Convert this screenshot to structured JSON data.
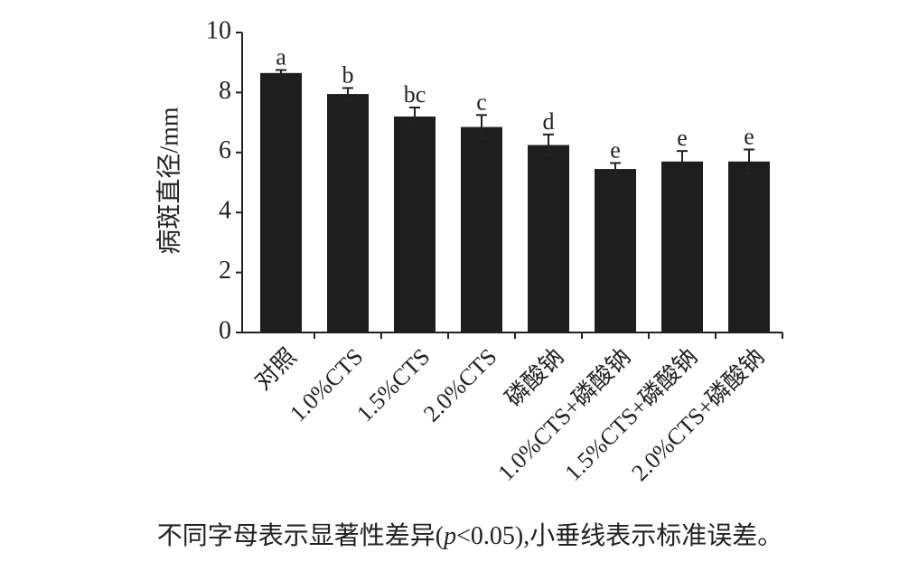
{
  "chart_data": {
    "type": "bar",
    "y_label": "病斑直径/mm",
    "categories": [
      "对照",
      "1.0%CTS",
      "1.5%CTS",
      "2.0%CTS",
      "磷酸钠",
      "1.0%CTS+磷酸钠",
      "1.5%CTS+磷酸钠",
      "2.0%CTS+磷酸钠"
    ],
    "values": [
      8.65,
      7.95,
      7.2,
      6.85,
      6.25,
      5.45,
      5.7,
      5.7
    ],
    "errors": [
      0.1,
      0.2,
      0.3,
      0.4,
      0.35,
      0.2,
      0.35,
      0.4
    ],
    "significance_labels": [
      "a",
      "b",
      "bc",
      "c",
      "d",
      "e",
      "e",
      "e"
    ],
    "color": "#1e1e1e",
    "ylim": [
      0,
      10
    ],
    "yticks": [
      0,
      2,
      4,
      6,
      8,
      10
    ],
    "grid": false,
    "note": [
      "不同字母表示显著性差异(",
      "p",
      "<0.05),小垂线表示标准误差。"
    ]
  }
}
